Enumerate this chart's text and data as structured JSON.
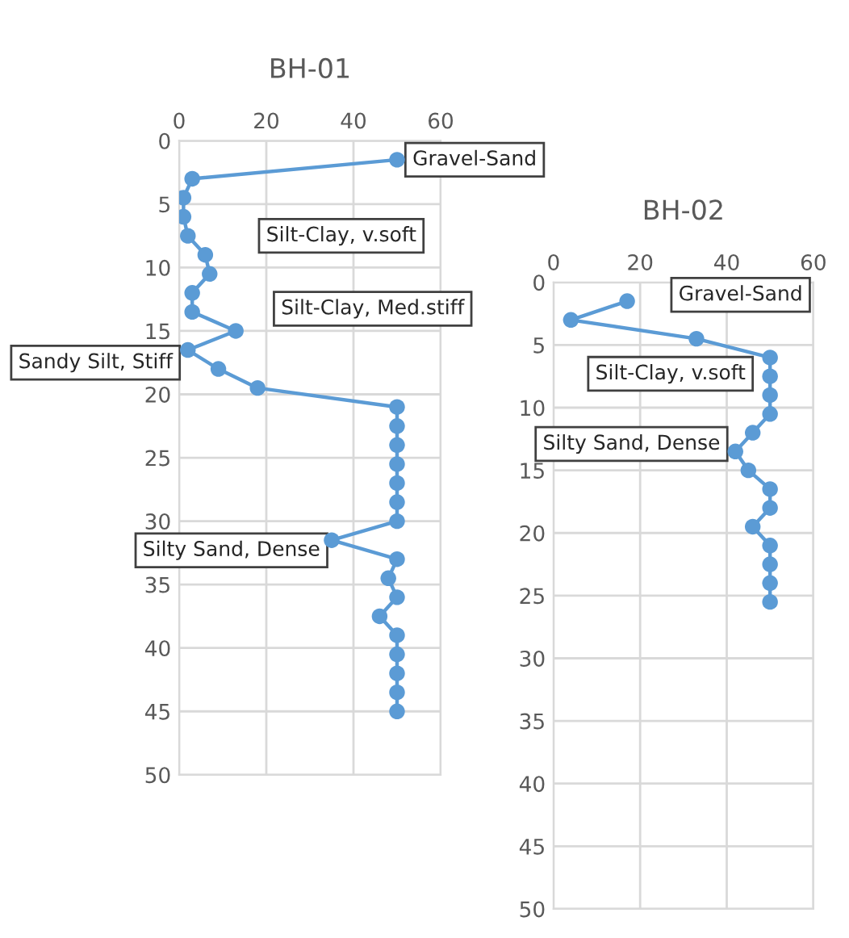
{
  "chart_data": [
    {
      "type": "line",
      "title": "BH-01",
      "marker": "circle",
      "line_style": "solid",
      "grid": true,
      "legend": false,
      "series": [
        {
          "color": "#5b9bd5",
          "x": [
            50,
            3,
            1,
            1,
            2,
            6,
            7,
            3,
            3,
            13,
            2,
            9,
            18,
            50,
            50,
            50,
            50,
            50,
            50,
            50,
            35,
            50,
            48,
            50,
            46,
            50,
            50,
            50,
            50,
            50
          ],
          "values": [
            1.5,
            3,
            4.5,
            6,
            7.5,
            9,
            10.5,
            12,
            13.5,
            15,
            16.5,
            18,
            19.5,
            21,
            22.5,
            24,
            25.5,
            27,
            28.5,
            30,
            31.5,
            33,
            34.5,
            36,
            37.5,
            39,
            40.5,
            42,
            43.5,
            45
          ]
        }
      ],
      "xlim": [
        0,
        60
      ],
      "xticks": [
        0,
        20,
        40,
        60
      ],
      "ylim": [
        50,
        0
      ],
      "yticks": [
        0,
        5,
        10,
        15,
        20,
        25,
        30,
        35,
        40,
        45,
        50
      ],
      "annotations": [
        "Gravel-Sand",
        "Silt-Clay, v.soft",
        "Silt-Clay, Med.stiff",
        "Sandy Silt, Stiff",
        "Silty Sand, Dense"
      ]
    },
    {
      "type": "line",
      "title": "BH-02",
      "marker": "circle",
      "line_style": "solid",
      "grid": true,
      "legend": false,
      "series": [
        {
          "color": "#5b9bd5",
          "x": [
            17,
            4,
            33,
            50,
            50,
            50,
            50,
            46,
            42,
            45,
            50,
            50,
            46,
            50,
            50,
            50,
            50
          ],
          "values": [
            1.5,
            3,
            4.5,
            6,
            7.5,
            9,
            10.5,
            12,
            13.5,
            15,
            16.5,
            18,
            19.5,
            21,
            22.5,
            24,
            25.5
          ]
        }
      ],
      "xlim": [
        0,
        60
      ],
      "xticks": [
        0,
        20,
        40,
        60
      ],
      "ylim": [
        50,
        0
      ],
      "yticks": [
        0,
        5,
        10,
        15,
        20,
        25,
        30,
        35,
        40,
        45,
        50
      ],
      "annotations": [
        "Gravel-Sand",
        "Silt-Clay, v.soft",
        "Silty Sand, Dense"
      ]
    }
  ]
}
